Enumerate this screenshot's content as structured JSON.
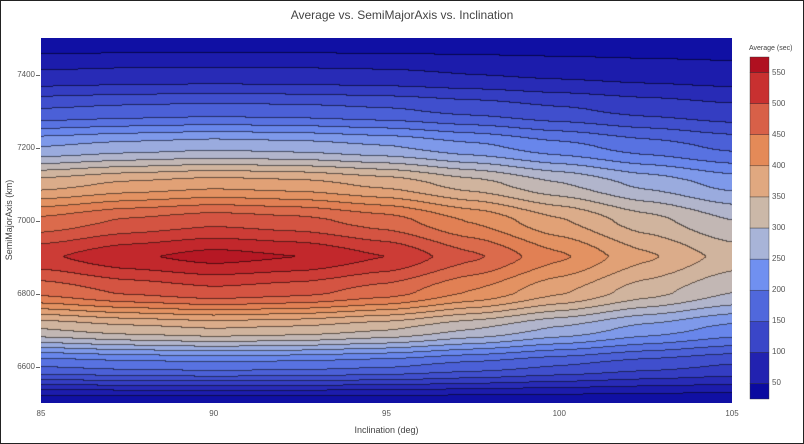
{
  "chart_data": {
    "type": "contour",
    "title": "Average vs. SemiMajorAxis vs. Inclination",
    "xlabel": "Inclination (deg)",
    "ylabel": "SemiMajorAxis (km)",
    "colorbar_title": "Average (sec)",
    "xlim": [
      85,
      105
    ],
    "ylim": [
      6500,
      7500
    ],
    "x_ticks": [
      85,
      90,
      95,
      100,
      105
    ],
    "y_ticks": [
      6600,
      6800,
      7000,
      7200,
      7400
    ],
    "colorbar_ticks": [
      50,
      100,
      150,
      200,
      250,
      300,
      350,
      400,
      450,
      500,
      550
    ],
    "colorbar_range": [
      25,
      575
    ],
    "contour_step": 25,
    "x": [
      85,
      87.5,
      90,
      92.5,
      95,
      97.5,
      100,
      102.5,
      105
    ],
    "y": [
      6500,
      6600,
      6700,
      6800,
      6900,
      7000,
      7100,
      7200,
      7300,
      7400,
      7500
    ],
    "z": [
      [
        30,
        30,
        30,
        30,
        30,
        30,
        30,
        30,
        30
      ],
      [
        177,
        185,
        189,
        186,
        179,
        165,
        150,
        135,
        123
      ],
      [
        324,
        339,
        348,
        342,
        327,
        300,
        270,
        240,
        216
      ],
      [
        456,
        478,
        491,
        482,
        461,
        422,
        378,
        335,
        300
      ],
      [
        520,
        545,
        560,
        550,
        525,
        480,
        430,
        380,
        340
      ],
      [
        456,
        478,
        491,
        482,
        461,
        422,
        378,
        335,
        300
      ],
      [
        363,
        380,
        390,
        384,
        367,
        336,
        302,
        268,
        241
      ],
      [
        251,
        262,
        269,
        264,
        253,
        233,
        210,
        188,
        170
      ],
      [
        153,
        159,
        163,
        160,
        154,
        143,
        130,
        118,
        108
      ],
      [
        79,
        82,
        83,
        82,
        80,
        75,
        70,
        65,
        61
      ],
      [
        30,
        30,
        30,
        30,
        30,
        30,
        30,
        30,
        30
      ]
    ],
    "colorscale": [
      "#0a0aa0",
      "#2222b0",
      "#3a46c8",
      "#5068dc",
      "#7090f0",
      "#a8b4d8",
      "#cbb8a8",
      "#e0a880",
      "#e48a58",
      "#d86048",
      "#c83030",
      "#b01020"
    ]
  }
}
